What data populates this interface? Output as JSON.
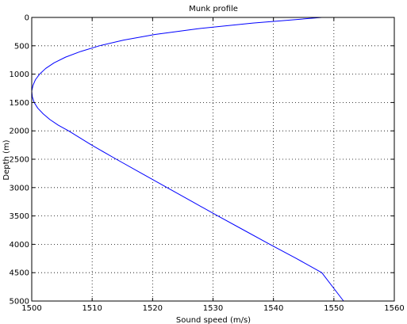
{
  "chart_data": {
    "type": "line",
    "title": "Munk profile",
    "xlabel": "Sound speed (m/s)",
    "ylabel": "Depth (m)",
    "xlim": [
      1500,
      1560
    ],
    "ylim": [
      0,
      5000
    ],
    "y_reversed": true,
    "grid": true,
    "xticks": [
      1500,
      1510,
      1520,
      1530,
      1540,
      1550,
      1560
    ],
    "yticks": [
      0,
      500,
      1000,
      1500,
      2000,
      2500,
      3000,
      3500,
      4000,
      4500,
      5000
    ],
    "line_color": "#0000ff",
    "series": [
      {
        "x": [
          1548.0,
          1536.6,
          1527.4,
          1520.4,
          1515.2,
          1511.2,
          1508.1,
          1505.6,
          1503.7,
          1502.3,
          1501.3,
          1500.6,
          1500.2,
          1500.0,
          1500.1,
          1500.4,
          1501.0,
          1501.9,
          1503.0,
          1504.4,
          1506.1,
          1509.9,
          1514.0,
          1518.2,
          1522.4,
          1526.6,
          1530.8,
          1535.1,
          1539.4,
          1543.8,
          1548.0,
          1551.6
        ],
        "y": [
          0,
          100,
          200,
          300,
          400,
          500,
          600,
          700,
          800,
          900,
          1000,
          1100,
          1200,
          1300,
          1400,
          1500,
          1600,
          1700,
          1800,
          1900,
          2000,
          2250,
          2500,
          2750,
          3000,
          3250,
          3500,
          3750,
          4000,
          4250,
          4500,
          5000
        ]
      }
    ]
  }
}
